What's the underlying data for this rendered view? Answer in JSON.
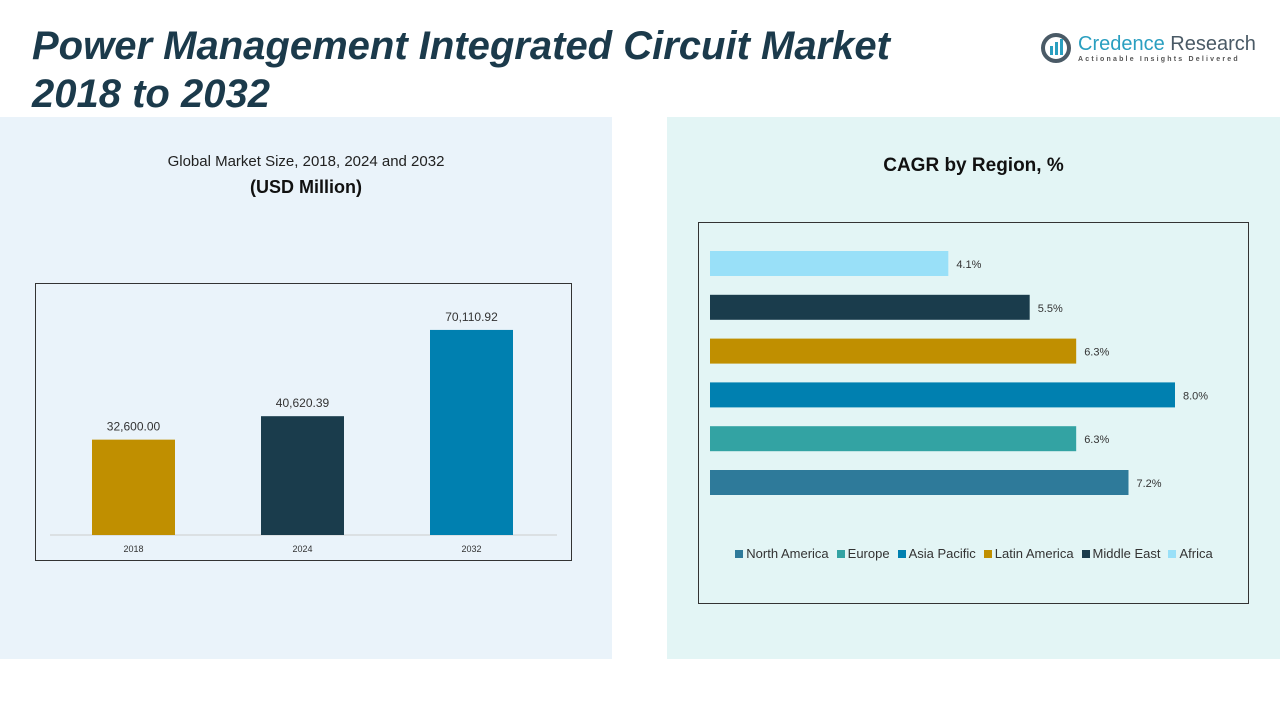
{
  "header": {
    "title_line1": "Power Management Integrated Circuit Market",
    "title_line2": "2018 to 2032"
  },
  "logo": {
    "name_a": "Credence",
    "name_b": "Research",
    "tagline": "Actionable Insights Delivered"
  },
  "chart_data": [
    {
      "type": "bar",
      "title": "Global Market Size, 2018, 2024 and 2032",
      "subtitle": "(USD Million)",
      "categories": [
        "2018",
        "2024",
        "2032"
      ],
      "values": [
        32600.0,
        40620.39,
        70110.92
      ],
      "labels": [
        "32,600.00",
        "40,620.39",
        "70,110.92"
      ],
      "colors": [
        "#c08f00",
        "#1a3c4c",
        "#0080b0"
      ],
      "ylim": [
        0,
        80000
      ],
      "grid": false
    },
    {
      "type": "bar",
      "orientation": "horizontal",
      "title": "CAGR by Region, %",
      "categories": [
        "North America",
        "Europe",
        "Asia Pacific",
        "Latin America",
        "Middle East",
        "Africa"
      ],
      "values": [
        7.2,
        6.3,
        8.0,
        6.3,
        5.5,
        4.1
      ],
      "labels": [
        "7.2%",
        "6.3%",
        "8.0%",
        "6.3%",
        "5.5%",
        "4.1%"
      ],
      "colors": [
        "#2e7a9a",
        "#33a3a3",
        "#0080b0",
        "#c08f00",
        "#1a3c4c",
        "#99e0f8"
      ],
      "xlim": [
        0,
        8
      ],
      "legend": "bottom",
      "grid": false
    }
  ]
}
